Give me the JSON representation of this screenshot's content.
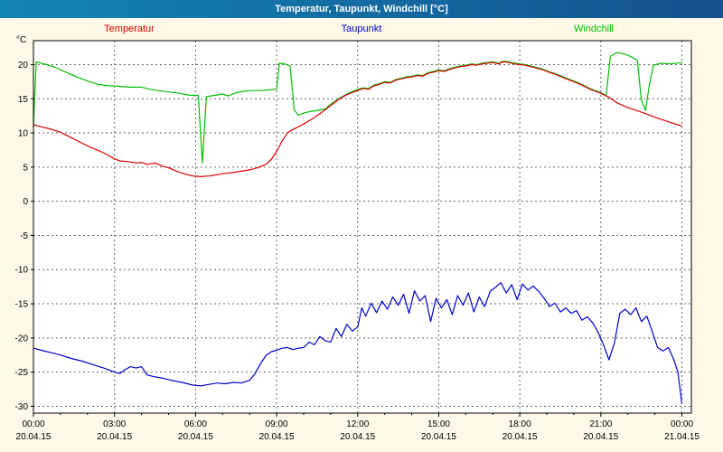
{
  "window": {
    "title": "Temperatur, Taupunkt, Windchill [°C]"
  },
  "chart_data": {
    "type": "line",
    "title": "Temperatur, Taupunkt, Windchill [°C]",
    "ylabel": "°C",
    "xlabel": "",
    "xlim": [
      0,
      24.35
    ],
    "ylim": [
      -31,
      23.5
    ],
    "grid": "dashed",
    "legend_position": "top",
    "colors": {
      "background": "#fdf8e7",
      "plot_bg": "#ffffff",
      "grid": "#666666",
      "axis": "#000000",
      "title_bar_left": "#1286b4",
      "title_bar_right": "#15518f",
      "title_text": "#ffffff"
    },
    "yticks": [
      20,
      15,
      10,
      5,
      0,
      -5,
      -10,
      -15,
      -20,
      -25,
      -30
    ],
    "xticks": [
      {
        "hour": 0,
        "time": "00:00",
        "date": "20.04.15"
      },
      {
        "hour": 3,
        "time": "03:00",
        "date": "20.04.15"
      },
      {
        "hour": 6,
        "time": "06:00",
        "date": "20.04.15"
      },
      {
        "hour": 9,
        "time": "09:00",
        "date": "20.04.15"
      },
      {
        "hour": 12,
        "time": "12:00",
        "date": "20.04.15"
      },
      {
        "hour": 15,
        "time": "15:00",
        "date": "20.04.15"
      },
      {
        "hour": 18,
        "time": "18:00",
        "date": "20.04.15"
      },
      {
        "hour": 21,
        "time": "21:00",
        "date": "20.04.15"
      },
      {
        "hour": 24,
        "time": "00:00",
        "date": "21.04.15"
      }
    ],
    "series": [
      {
        "id": "temperatur",
        "name": "Temperatur",
        "color": "#dd0000",
        "points": [
          [
            0,
            11.2
          ],
          [
            0.3,
            10.9
          ],
          [
            0.6,
            10.6
          ],
          [
            1,
            10.1
          ],
          [
            1.3,
            9.5
          ],
          [
            1.7,
            8.7
          ],
          [
            2,
            8.1
          ],
          [
            2.3,
            7.6
          ],
          [
            2.7,
            6.9
          ],
          [
            3,
            6.2
          ],
          [
            3.2,
            5.9
          ],
          [
            3.5,
            5.8
          ],
          [
            3.8,
            5.6
          ],
          [
            4,
            5.7
          ],
          [
            4.2,
            5.4
          ],
          [
            4.5,
            5.6
          ],
          [
            4.8,
            5.1
          ],
          [
            5,
            4.9
          ],
          [
            5.3,
            4.4
          ],
          [
            5.6,
            4.0
          ],
          [
            5.9,
            3.7
          ],
          [
            6.2,
            3.6
          ],
          [
            6.5,
            3.7
          ],
          [
            6.8,
            3.9
          ],
          [
            7.1,
            4.1
          ],
          [
            7.4,
            4.2
          ],
          [
            7.7,
            4.4
          ],
          [
            8,
            4.6
          ],
          [
            8.3,
            4.9
          ],
          [
            8.6,
            5.4
          ],
          [
            8.8,
            6.1
          ],
          [
            9,
            7.3
          ],
          [
            9.2,
            8.8
          ],
          [
            9.4,
            10.0
          ],
          [
            9.6,
            10.5
          ],
          [
            9.8,
            10.9
          ],
          [
            10,
            11.3
          ],
          [
            10.3,
            12.0
          ],
          [
            10.6,
            12.8
          ],
          [
            11,
            14.0
          ],
          [
            11.3,
            14.9
          ],
          [
            11.6,
            15.6
          ],
          [
            12,
            16.2
          ],
          [
            12.2,
            16.5
          ],
          [
            12.4,
            16.4
          ],
          [
            12.6,
            16.9
          ],
          [
            12.8,
            17.1
          ],
          [
            13,
            17.4
          ],
          [
            13.2,
            17.3
          ],
          [
            13.4,
            17.7
          ],
          [
            13.6,
            17.9
          ],
          [
            13.8,
            18.1
          ],
          [
            14,
            18.2
          ],
          [
            14.2,
            18.4
          ],
          [
            14.4,
            18.3
          ],
          [
            14.6,
            18.7
          ],
          [
            14.8,
            18.9
          ],
          [
            15,
            19.1
          ],
          [
            15.2,
            19.0
          ],
          [
            15.4,
            19.3
          ],
          [
            15.6,
            19.5
          ],
          [
            15.8,
            19.7
          ],
          [
            16,
            19.8
          ],
          [
            16.2,
            20.0
          ],
          [
            16.4,
            19.9
          ],
          [
            16.6,
            20.1
          ],
          [
            16.8,
            20.2
          ],
          [
            17,
            20.3
          ],
          [
            17.2,
            20.1
          ],
          [
            17.4,
            20.4
          ],
          [
            17.6,
            20.3
          ],
          [
            17.8,
            20.1
          ],
          [
            18,
            20.0
          ],
          [
            18.2,
            19.9
          ],
          [
            18.4,
            19.7
          ],
          [
            18.6,
            19.5
          ],
          [
            18.8,
            19.3
          ],
          [
            19,
            19.0
          ],
          [
            19.3,
            18.6
          ],
          [
            19.6,
            18.1
          ],
          [
            20,
            17.5
          ],
          [
            20.3,
            17.0
          ],
          [
            20.6,
            16.4
          ],
          [
            21,
            15.8
          ],
          [
            21.3,
            15.2
          ],
          [
            21.6,
            14.4
          ],
          [
            22,
            13.7
          ],
          [
            22.3,
            13.3
          ],
          [
            22.6,
            12.9
          ],
          [
            23,
            12.3
          ],
          [
            23.3,
            11.9
          ],
          [
            23.6,
            11.5
          ],
          [
            24,
            11.0
          ]
        ]
      },
      {
        "id": "taupunkt",
        "name": "Taupunkt",
        "color": "#0000cc",
        "points": [
          [
            0,
            -21.5
          ],
          [
            0.3,
            -21.8
          ],
          [
            0.6,
            -22.1
          ],
          [
            1,
            -22.5
          ],
          [
            1.4,
            -23.0
          ],
          [
            1.8,
            -23.4
          ],
          [
            2.2,
            -23.9
          ],
          [
            2.6,
            -24.4
          ],
          [
            3,
            -25.0
          ],
          [
            3.2,
            -25.2
          ],
          [
            3.4,
            -24.6
          ],
          [
            3.6,
            -24.2
          ],
          [
            3.8,
            -24.4
          ],
          [
            4,
            -24.2
          ],
          [
            4.2,
            -25.4
          ],
          [
            4.5,
            -25.7
          ],
          [
            4.8,
            -25.9
          ],
          [
            5.1,
            -26.2
          ],
          [
            5.5,
            -26.5
          ],
          [
            5.9,
            -26.9
          ],
          [
            6.2,
            -27.0
          ],
          [
            6.5,
            -26.8
          ],
          [
            6.8,
            -26.6
          ],
          [
            7.1,
            -26.7
          ],
          [
            7.4,
            -26.5
          ],
          [
            7.7,
            -26.6
          ],
          [
            8,
            -26.2
          ],
          [
            8.2,
            -25.2
          ],
          [
            8.4,
            -23.8
          ],
          [
            8.6,
            -22.6
          ],
          [
            8.8,
            -22.0
          ],
          [
            9,
            -21.8
          ],
          [
            9.2,
            -21.5
          ],
          [
            9.4,
            -21.4
          ],
          [
            9.6,
            -21.7
          ],
          [
            9.8,
            -21.5
          ],
          [
            10,
            -21.4
          ],
          [
            10.2,
            -20.6
          ],
          [
            10.4,
            -21.0
          ],
          [
            10.6,
            -19.8
          ],
          [
            10.8,
            -20.4
          ],
          [
            11,
            -20.6
          ],
          [
            11.2,
            -18.6
          ],
          [
            11.4,
            -19.8
          ],
          [
            11.6,
            -18.0
          ],
          [
            11.8,
            -19.0
          ],
          [
            12,
            -18.4
          ],
          [
            12.15,
            -15.6
          ],
          [
            12.3,
            -16.8
          ],
          [
            12.5,
            -14.9
          ],
          [
            12.7,
            -16.3
          ],
          [
            12.9,
            -14.6
          ],
          [
            13.1,
            -15.8
          ],
          [
            13.3,
            -14.0
          ],
          [
            13.5,
            -15.2
          ],
          [
            13.7,
            -13.6
          ],
          [
            13.9,
            -16.4
          ],
          [
            14.1,
            -13.1
          ],
          [
            14.3,
            -14.6
          ],
          [
            14.5,
            -13.8
          ],
          [
            14.7,
            -17.6
          ],
          [
            14.9,
            -14.2
          ],
          [
            15.1,
            -15.6
          ],
          [
            15.3,
            -14.4
          ],
          [
            15.5,
            -16.6
          ],
          [
            15.7,
            -13.8
          ],
          [
            15.9,
            -15.2
          ],
          [
            16.1,
            -13.4
          ],
          [
            16.3,
            -16.2
          ],
          [
            16.5,
            -14.0
          ],
          [
            16.7,
            -15.4
          ],
          [
            16.9,
            -13.2
          ],
          [
            17.1,
            -12.6
          ],
          [
            17.3,
            -11.9
          ],
          [
            17.5,
            -13.4
          ],
          [
            17.7,
            -12.2
          ],
          [
            17.9,
            -14.4
          ],
          [
            18.1,
            -12.1
          ],
          [
            18.3,
            -13.0
          ],
          [
            18.5,
            -12.4
          ],
          [
            18.7,
            -13.2
          ],
          [
            18.9,
            -14.2
          ],
          [
            19.1,
            -15.4
          ],
          [
            19.3,
            -14.9
          ],
          [
            19.5,
            -16.2
          ],
          [
            19.7,
            -15.6
          ],
          [
            19.9,
            -16.4
          ],
          [
            20.1,
            -16.0
          ],
          [
            20.3,
            -17.4
          ],
          [
            20.5,
            -16.9
          ],
          [
            20.7,
            -17.8
          ],
          [
            20.9,
            -19.2
          ],
          [
            21.1,
            -21.0
          ],
          [
            21.3,
            -23.2
          ],
          [
            21.5,
            -20.8
          ],
          [
            21.7,
            -16.4
          ],
          [
            21.9,
            -15.8
          ],
          [
            22.1,
            -16.6
          ],
          [
            22.3,
            -15.6
          ],
          [
            22.5,
            -17.6
          ],
          [
            22.7,
            -16.8
          ],
          [
            22.9,
            -19.0
          ],
          [
            23.1,
            -21.4
          ],
          [
            23.3,
            -21.9
          ],
          [
            23.5,
            -21.4
          ],
          [
            23.7,
            -23.2
          ],
          [
            23.85,
            -25.0
          ],
          [
            24,
            -29.6
          ]
        ]
      },
      {
        "id": "windchill",
        "name": "Windchill",
        "color": "#00c000",
        "points": [
          [
            0,
            10.8
          ],
          [
            0.1,
            20.4
          ],
          [
            0.4,
            20.1
          ],
          [
            0.8,
            19.6
          ],
          [
            1.2,
            18.9
          ],
          [
            1.6,
            18.2
          ],
          [
            2,
            17.6
          ],
          [
            2.4,
            17.1
          ],
          [
            2.8,
            16.9
          ],
          [
            3.2,
            16.8
          ],
          [
            3.6,
            16.7
          ],
          [
            4,
            16.7
          ],
          [
            4.3,
            16.4
          ],
          [
            4.6,
            16.2
          ],
          [
            5,
            16.0
          ],
          [
            5.4,
            15.8
          ],
          [
            5.8,
            15.5
          ],
          [
            6.1,
            15.5
          ],
          [
            6.25,
            5.6
          ],
          [
            6.4,
            15.3
          ],
          [
            6.7,
            15.5
          ],
          [
            7,
            15.7
          ],
          [
            7.2,
            15.4
          ],
          [
            7.5,
            15.9
          ],
          [
            7.8,
            16.1
          ],
          [
            8.1,
            16.2
          ],
          [
            8.4,
            16.2
          ],
          [
            8.7,
            16.3
          ],
          [
            9,
            16.4
          ],
          [
            9.1,
            20.2
          ],
          [
            9.3,
            20.1
          ],
          [
            9.5,
            19.8
          ],
          [
            9.65,
            13.4
          ],
          [
            9.8,
            12.6
          ],
          [
            10,
            12.9
          ],
          [
            10.2,
            13.1
          ],
          [
            10.5,
            13.3
          ],
          [
            10.8,
            13.5
          ],
          [
            11,
            14.2
          ],
          [
            11.3,
            15.0
          ],
          [
            11.6,
            15.7
          ],
          [
            12,
            16.4
          ],
          [
            12.2,
            16.6
          ],
          [
            12.4,
            16.5
          ],
          [
            12.6,
            17.0
          ],
          [
            12.8,
            17.2
          ],
          [
            13,
            17.5
          ],
          [
            13.2,
            17.4
          ],
          [
            13.4,
            17.8
          ],
          [
            13.6,
            18.0
          ],
          [
            13.8,
            18.2
          ],
          [
            14,
            18.3
          ],
          [
            14.2,
            18.5
          ],
          [
            14.4,
            18.4
          ],
          [
            14.6,
            18.8
          ],
          [
            14.8,
            19.0
          ],
          [
            15,
            19.2
          ],
          [
            15.2,
            19.1
          ],
          [
            15.4,
            19.4
          ],
          [
            15.6,
            19.6
          ],
          [
            15.8,
            19.8
          ],
          [
            16,
            19.9
          ],
          [
            16.2,
            20.1
          ],
          [
            16.4,
            20.0
          ],
          [
            16.6,
            20.2
          ],
          [
            16.8,
            20.3
          ],
          [
            17,
            20.4
          ],
          [
            17.2,
            20.2
          ],
          [
            17.4,
            20.5
          ],
          [
            17.6,
            20.4
          ],
          [
            17.8,
            20.2
          ],
          [
            18,
            20.1
          ],
          [
            18.2,
            20.0
          ],
          [
            18.4,
            19.8
          ],
          [
            18.6,
            19.6
          ],
          [
            18.8,
            19.4
          ],
          [
            19,
            19.1
          ],
          [
            19.3,
            18.7
          ],
          [
            19.6,
            18.2
          ],
          [
            20,
            17.6
          ],
          [
            20.3,
            17.1
          ],
          [
            20.6,
            16.5
          ],
          [
            21,
            15.9
          ],
          [
            21.2,
            15.5
          ],
          [
            21.35,
            21.2
          ],
          [
            21.6,
            21.8
          ],
          [
            21.9,
            21.5
          ],
          [
            22.1,
            21.2
          ],
          [
            22.35,
            20.6
          ],
          [
            22.5,
            14.8
          ],
          [
            22.65,
            13.3
          ],
          [
            22.8,
            17.2
          ],
          [
            22.95,
            19.9
          ],
          [
            23.2,
            20.2
          ],
          [
            23.6,
            20.1
          ],
          [
            24,
            20.3
          ]
        ]
      }
    ]
  }
}
